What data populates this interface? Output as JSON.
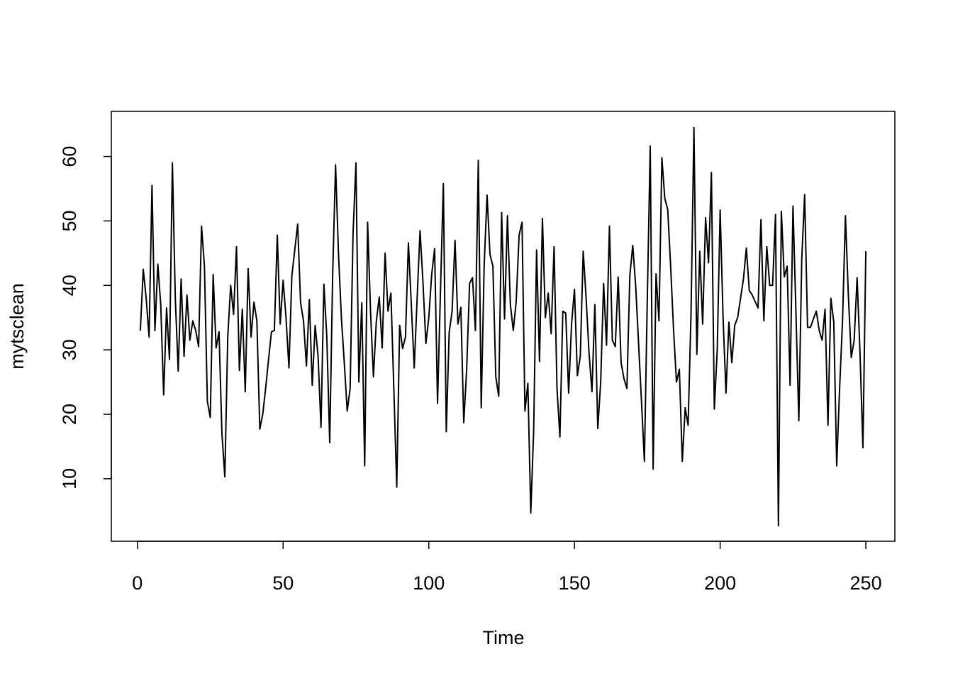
{
  "chart_data": {
    "type": "line",
    "xlabel": "Time",
    "ylabel": "mytsclean",
    "xlim": [
      -8.96,
      259.96
    ],
    "ylim": [
      0.3,
      67
    ],
    "xticks": [
      0,
      50,
      100,
      150,
      200,
      250
    ],
    "yticks": [
      10,
      20,
      30,
      40,
      50,
      60
    ],
    "color": "#000000",
    "x": [
      1,
      2,
      3,
      4,
      5,
      6,
      7,
      8,
      9,
      10,
      11,
      12,
      13,
      14,
      15,
      16,
      17,
      18,
      19,
      20,
      21,
      22,
      23,
      24,
      25,
      26,
      27,
      28,
      29,
      30,
      31,
      32,
      33,
      34,
      35,
      36,
      37,
      38,
      39,
      40,
      41,
      42,
      43,
      44,
      45,
      46,
      47,
      48,
      49,
      50,
      51,
      52,
      53,
      54,
      55,
      56,
      57,
      58,
      59,
      60,
      61,
      62,
      63,
      64,
      65,
      66,
      67,
      68,
      69,
      70,
      71,
      72,
      73,
      74,
      75,
      76,
      77,
      78,
      79,
      80,
      81,
      82,
      83,
      84,
      85,
      86,
      87,
      88,
      89,
      90,
      91,
      92,
      93,
      94,
      95,
      96,
      97,
      98,
      99,
      100,
      101,
      102,
      103,
      104,
      105,
      106,
      107,
      108,
      109,
      110,
      111,
      112,
      113,
      114,
      115,
      116,
      117,
      118,
      119,
      120,
      121,
      122,
      123,
      124,
      125,
      126,
      127,
      128,
      129,
      130,
      131,
      132,
      133,
      134,
      135,
      136,
      137,
      138,
      139,
      140,
      141,
      142,
      143,
      144,
      145,
      146,
      147,
      148,
      149,
      150,
      151,
      152,
      153,
      154,
      155,
      156,
      157,
      158,
      159,
      160,
      161,
      162,
      163,
      164,
      165,
      166,
      167,
      168,
      169,
      170,
      171,
      172,
      173,
      174,
      175,
      176,
      177,
      178,
      179,
      180,
      181,
      182,
      183,
      184,
      185,
      186,
      187,
      188,
      189,
      190,
      191,
      192,
      193,
      194,
      195,
      196,
      197,
      198,
      199,
      200,
      201,
      202,
      203,
      204,
      205,
      206,
      207,
      208,
      209,
      210,
      211,
      212,
      213,
      214,
      215,
      216,
      217,
      218,
      219,
      220,
      221,
      222,
      223,
      224,
      225,
      226,
      227,
      228,
      229,
      230,
      231,
      232,
      233,
      234,
      235,
      236,
      237,
      238,
      239,
      240,
      241,
      242,
      243,
      244,
      245,
      246,
      247,
      248,
      249,
      250
    ],
    "values": [
      33,
      42.5,
      38,
      32,
      55.5,
      33,
      43.3,
      37,
      23,
      36.5,
      28.5,
      59,
      38,
      26.7,
      41,
      29,
      38.5,
      31.5,
      34.5,
      33,
      30.5,
      49.2,
      43,
      22,
      19.5,
      41.7,
      30.3,
      32.8,
      17,
      10.3,
      32,
      40,
      35.5,
      46,
      26.8,
      36.3,
      23.5,
      42.6,
      32,
      37.4,
      34.5,
      17.7,
      20,
      24,
      28.5,
      32.8,
      33,
      47.8,
      34,
      40.8,
      35,
      27.2,
      41.5,
      45.5,
      49.5,
      37.3,
      34.5,
      27.5,
      37.8,
      24.5,
      33.8,
      29,
      18,
      40.2,
      32,
      15.6,
      41.5,
      58.7,
      45,
      35,
      28,
      20.5,
      24,
      48,
      59,
      25,
      37.3,
      12,
      49.8,
      36,
      25.8,
      34.5,
      38.2,
      30.3,
      45,
      36,
      38.8,
      24,
      8.7,
      33.8,
      30.2,
      32,
      46.6,
      37,
      27.2,
      38,
      48.5,
      40.5,
      31,
      35,
      41.7,
      45.7,
      21.7,
      39,
      55.8,
      17.3,
      32.7,
      36,
      47,
      34,
      36.6,
      18.7,
      27,
      40.3,
      41.2,
      33,
      59.4,
      21,
      43,
      54,
      44.8,
      43,
      25.8,
      22.8,
      51.3,
      34.8,
      50.8,
      37,
      33,
      37.5,
      47.8,
      49.8,
      20.5,
      24.8,
      4.7,
      17.5,
      45.5,
      28.2,
      50.4,
      35,
      38.8,
      32.5,
      46,
      24,
      16.5,
      36,
      35.7,
      23.3,
      34,
      39.4,
      26,
      29,
      45.3,
      38,
      29.5,
      23.5,
      37,
      17.8,
      25,
      40.3,
      30.7,
      49.2,
      31.5,
      30.5,
      41.3,
      28,
      25.5,
      24,
      41.5,
      46.2,
      40,
      31,
      22,
      12.7,
      38,
      61.6,
      11.5,
      41.8,
      34.5,
      59.8,
      53.5,
      51.8,
      43,
      33.2,
      25,
      27,
      12.7,
      21,
      18.3,
      35.5,
      64.5,
      29.3,
      45.3,
      34,
      50.5,
      43.5,
      57.5,
      20.8,
      30,
      51.7,
      35,
      23.3,
      34.3,
      28,
      33.8,
      35,
      38,
      41,
      45.8,
      39.2,
      38.5,
      37.5,
      36.5,
      50.2,
      34.5,
      46,
      40,
      40,
      51,
      2.7,
      51.5,
      41.3,
      43,
      24.5,
      52.3,
      36,
      19,
      44,
      54.1,
      33.5,
      33.5,
      34.8,
      36,
      33,
      31.5,
      36.3,
      18.3,
      38,
      34.3,
      12,
      24,
      34.5,
      50.8,
      38.5,
      28.8,
      31.5,
      41.2,
      29.5,
      14.8,
      45.3
    ]
  }
}
